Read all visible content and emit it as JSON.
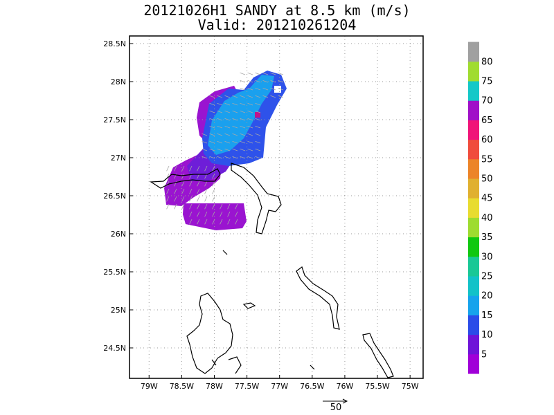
{
  "title": {
    "line1": "20121026H1 SANDY at 8.5 km (m/s)",
    "line2": "Valid: 201210261204"
  },
  "map": {
    "lon_range": [
      -79.3,
      -74.8
    ],
    "lat_range": [
      24.1,
      28.6
    ],
    "lon_ticks": [
      "79W",
      "78.5W",
      "78W",
      "77.5W",
      "77W",
      "76.5W",
      "76W",
      "75.5W",
      "75W"
    ],
    "lat_ticks": [
      "24.5N",
      "25N",
      "25.5N",
      "26N",
      "26.5N",
      "27N",
      "27.5N",
      "28N",
      "28.5N"
    ],
    "grid": true
  },
  "colorbar": {
    "labels": [
      "5",
      "10",
      "15",
      "20",
      "25",
      "30",
      "35",
      "40",
      "45",
      "50",
      "55",
      "60",
      "65",
      "70",
      "75",
      "80"
    ],
    "colors": [
      "#a000d8",
      "#6e14d8",
      "#2b4ce8",
      "#16a3ec",
      "#12c2c8",
      "#19c896",
      "#10c810",
      "#9edc30",
      "#e8dc30",
      "#e0b030",
      "#ec8428",
      "#f04c3c",
      "#f01478",
      "#a010c8",
      "#14c8c8",
      "#a0dc30",
      "#a0a0a0"
    ]
  },
  "wind_colors": {
    "purple": "#9a14d0",
    "violet": "#6e1ed8",
    "blue": "#2e52ea",
    "sky": "#1aa0ee",
    "arrow": "#a8a8a8"
  },
  "scale_vector": {
    "label": "50"
  }
}
